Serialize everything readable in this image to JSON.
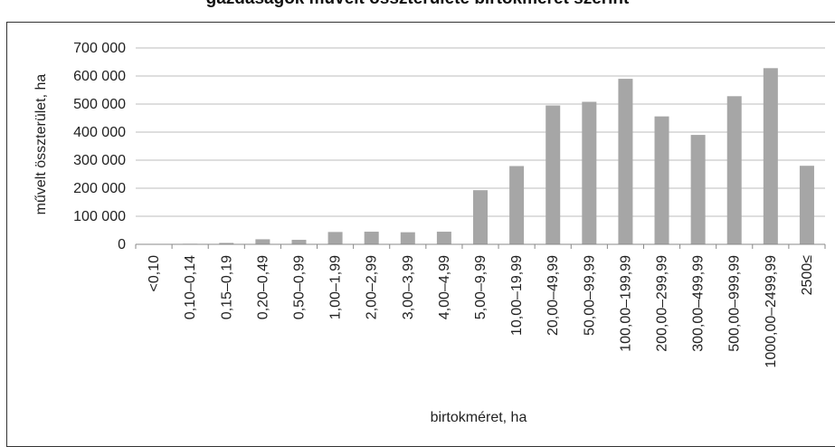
{
  "caption": {
    "text": "gazdaságok művelt összterülete birtokméret szerint"
  },
  "chart_data": {
    "type": "bar",
    "title": "",
    "xlabel": "birtokméret, ha",
    "ylabel": "művelt összterület, ha",
    "ylim": [
      0,
      700000
    ],
    "yticks": [
      0,
      100000,
      200000,
      300000,
      400000,
      500000,
      600000,
      700000
    ],
    "ytick_labels": [
      "0",
      "100 000",
      "200 000",
      "300 000",
      "400 000",
      "500 000",
      "600 000",
      "700 000"
    ],
    "grid": true,
    "bar_color": "#a6a6a6",
    "categories": [
      "<0,10",
      "0,10–0,14",
      "0,15–0,19",
      "0,20–0,49",
      "0,50–0,99",
      "1,00–1,99",
      "2,00–2,99",
      "3,00–3,99",
      "4,00–4,99",
      "5,00–9,99",
      "10,00–19,99",
      "20,00–49,99",
      "50,00–99,99",
      "100,00–199,99",
      "200,00–299,99",
      "300,00–499,99",
      "500,00–999,99",
      "1000,00–2499,99",
      "2500≤"
    ],
    "values": [
      1000,
      2000,
      5000,
      18000,
      16000,
      44000,
      45000,
      43000,
      45000,
      193000,
      279000,
      495000,
      508000,
      590000,
      456000,
      390000,
      528000,
      628000,
      280000
    ]
  }
}
